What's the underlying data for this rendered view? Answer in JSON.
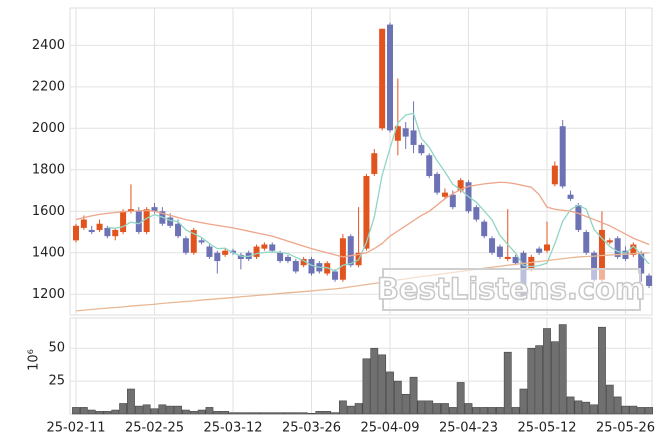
{
  "chart_data": [
    {
      "type": "candlestick",
      "open": [
        1460,
        1520,
        1510,
        1510,
        1520,
        1480,
        1500,
        1600,
        1600,
        1500,
        1620,
        1600,
        1570,
        1540,
        1470,
        1400,
        1460,
        1430,
        1400,
        1390,
        1410,
        1390,
        1400,
        1380,
        1420,
        1440,
        1400,
        1380,
        1360,
        1340,
        1370,
        1350,
        1300,
        1310,
        1270,
        1480,
        1340,
        1420,
        1780,
        2000,
        2500,
        1940,
        2000,
        1990,
        1920,
        1870,
        1780,
        1670,
        1680,
        1700,
        1740,
        1620,
        1550,
        1470,
        1430,
        1370,
        1380,
        1400,
        1320,
        1420,
        1410,
        1730,
        2010,
        1680,
        1630,
        1500,
        1400,
        1270,
        1450,
        1470,
        1410,
        1390,
        1400,
        1290
      ],
      "high": [
        1540,
        1580,
        1530,
        1560,
        1530,
        1520,
        1610,
        1730,
        1620,
        1620,
        1640,
        1620,
        1590,
        1560,
        1480,
        1520,
        1470,
        1440,
        1410,
        1420,
        1420,
        1400,
        1410,
        1440,
        1450,
        1450,
        1410,
        1390,
        1370,
        1380,
        1380,
        1360,
        1360,
        1320,
        1490,
        1490,
        1620,
        1780,
        1900,
        2480,
        2510,
        2240,
        2030,
        2130,
        1930,
        1880,
        1790,
        1710,
        1700,
        1760,
        1750,
        1630,
        1560,
        1480,
        1440,
        1610,
        1390,
        1410,
        1390,
        1430,
        1550,
        1840,
        2040,
        1700,
        1640,
        1510,
        1410,
        1600,
        1470,
        1480,
        1430,
        1450,
        1410,
        1300
      ],
      "low": [
        1450,
        1510,
        1490,
        1500,
        1470,
        1460,
        1490,
        1590,
        1490,
        1490,
        1590,
        1530,
        1520,
        1470,
        1390,
        1390,
        1440,
        1370,
        1300,
        1380,
        1390,
        1320,
        1360,
        1370,
        1410,
        1400,
        1350,
        1350,
        1300,
        1330,
        1290,
        1300,
        1290,
        1260,
        1260,
        1330,
        1330,
        1410,
        1770,
        1990,
        1980,
        1870,
        1900,
        1880,
        1870,
        1760,
        1680,
        1660,
        1610,
        1690,
        1590,
        1550,
        1470,
        1390,
        1370,
        1360,
        1340,
        1170,
        1310,
        1390,
        1400,
        1720,
        1710,
        1650,
        1500,
        1390,
        1260,
        1260,
        1440,
        1370,
        1360,
        1380,
        1260,
        1230
      ],
      "close": [
        1530,
        1560,
        1500,
        1540,
        1480,
        1510,
        1600,
        1610,
        1500,
        1610,
        1600,
        1540,
        1530,
        1480,
        1400,
        1510,
        1450,
        1380,
        1360,
        1410,
        1400,
        1370,
        1370,
        1430,
        1440,
        1410,
        1360,
        1360,
        1310,
        1370,
        1300,
        1310,
        1350,
        1270,
        1470,
        1340,
        1400,
        1770,
        1880,
        2480,
        1990,
        2010,
        1960,
        1920,
        1880,
        1770,
        1690,
        1690,
        1620,
        1750,
        1600,
        1560,
        1480,
        1400,
        1380,
        1380,
        1350,
        1180,
        1380,
        1400,
        1440,
        1820,
        1720,
        1660,
        1510,
        1400,
        1270,
        1510,
        1460,
        1380,
        1370,
        1440,
        1300,
        1240
      ],
      "up_color": "#e2531e",
      "down_color": "#6d72b5",
      "series": [
        {
          "color": "#8fd6c3",
          "values": [
            null,
            null,
            null,
            null,
            1522,
            1518,
            1526,
            1548,
            1540,
            1566,
            1584,
            1572,
            1556,
            1550,
            1510,
            1492,
            1474,
            1444,
            1420,
            1422,
            1400,
            1384,
            1382,
            1396,
            1402,
            1404,
            1402,
            1396,
            1378,
            1362,
            1340,
            1330,
            1328,
            1312,
            1340,
            1348,
            1366,
            1450,
            1572,
            1774,
            1904,
            2026,
            2064,
            2072,
            1952,
            1908,
            1844,
            1790,
            1730,
            1704,
            1670,
            1644,
            1602,
            1558,
            1484,
            1440,
            1398,
            1338,
            1334,
            1338,
            1350,
            1444,
            1552,
            1608,
            1630,
            1610,
            1512,
            1470,
            1430,
            1406,
            1398,
            1432,
            1390,
            1346
          ]
        },
        {
          "color": "#eea68a",
          "values": [
            1560,
            1570,
            1578,
            1585,
            1590,
            1594,
            1598,
            1600,
            1602,
            1604,
            1600,
            1590,
            1580,
            1570,
            1560,
            1552,
            1545,
            1538,
            1532,
            1526,
            1520,
            1512,
            1504,
            1496,
            1488,
            1480,
            1468,
            1456,
            1444,
            1432,
            1420,
            1410,
            1400,
            1390,
            1380,
            1386,
            1392,
            1400,
            1420,
            1445,
            1480,
            1505,
            1530,
            1555,
            1580,
            1600,
            1630,
            1660,
            1685,
            1705,
            1720,
            1726,
            1732,
            1736,
            1740,
            1738,
            1732,
            1724,
            1716,
            1680,
            1620,
            1610,
            1605,
            1600,
            1590,
            1575,
            1560,
            1545,
            1530,
            1510,
            1490,
            1470,
            1455,
            1440
          ]
        },
        {
          "color": "#e8b894",
          "values": [
            1120,
            1123,
            1127,
            1130,
            1133,
            1136,
            1139,
            1143,
            1146,
            1149,
            1152,
            1156,
            1159,
            1162,
            1165,
            1168,
            1172,
            1175,
            1178,
            1181,
            1184,
            1188,
            1191,
            1194,
            1197,
            1200,
            1204,
            1207,
            1210,
            1213,
            1216,
            1220,
            1223,
            1226,
            1230,
            1236,
            1241,
            1247,
            1252,
            1258,
            1263,
            1269,
            1274,
            1280,
            1285,
            1290,
            1295,
            1300,
            1305,
            1310,
            1315,
            1320,
            1325,
            1330,
            1335,
            1340,
            1344,
            1349,
            1353,
            1358,
            1362,
            1367,
            1371,
            1376,
            1380,
            1382,
            1384,
            1387,
            1389,
            1391,
            1393,
            1396,
            1398,
            1400
          ]
        }
      ],
      "ylim": [
        1100,
        2580
      ],
      "yticks": [
        1200,
        1400,
        1600,
        1800,
        2000,
        2200,
        2400
      ],
      "grid": true,
      "watermark": "BestListens.com"
    },
    {
      "type": "bar",
      "y_label": "10⁶",
      "categories": [
        "25-02-11",
        null,
        null,
        null,
        null,
        null,
        null,
        null,
        null,
        null,
        "25-02-25",
        null,
        null,
        null,
        null,
        null,
        null,
        null,
        null,
        null,
        "25-03-12",
        null,
        null,
        null,
        null,
        null,
        null,
        null,
        null,
        null,
        "25-03-26",
        null,
        null,
        null,
        null,
        null,
        null,
        null,
        null,
        null,
        "25-04-09",
        null,
        null,
        null,
        null,
        null,
        null,
        null,
        null,
        null,
        "25-04-23",
        null,
        null,
        null,
        null,
        null,
        null,
        null,
        null,
        null,
        "25-05-12",
        null,
        null,
        null,
        null,
        null,
        null,
        null,
        null,
        null,
        "25-05-26",
        null,
        null,
        null
      ],
      "values": [
        5,
        5,
        3,
        2,
        2,
        3,
        8,
        19,
        6,
        7,
        4,
        7,
        6,
        6,
        3,
        2,
        3,
        5,
        2,
        2,
        1,
        1,
        1,
        1,
        1,
        1,
        1,
        1,
        1,
        1,
        0.5,
        2,
        2,
        1,
        10,
        6,
        8,
        42,
        50,
        45,
        32,
        25,
        15,
        28,
        10,
        10,
        8,
        8,
        5,
        24,
        8,
        5,
        5,
        5,
        5,
        47,
        5,
        19,
        50,
        52,
        65,
        55,
        68,
        13,
        10,
        9,
        7,
        66,
        22,
        13,
        6,
        6,
        5,
        5
      ],
      "color": "#707070",
      "ylim": [
        0,
        73
      ],
      "yticks": [
        25,
        50
      ],
      "grid": true
    }
  ]
}
